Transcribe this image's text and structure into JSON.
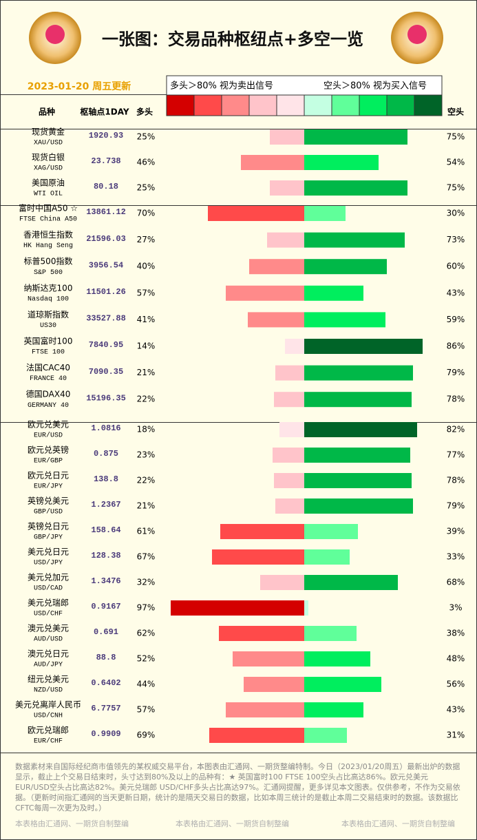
{
  "header": {
    "title": "一张图：交易品种枢纽点+多空一览",
    "date": "2023-01-20 周五更新",
    "legend_left": "多头＞80% 视为卖出信号",
    "legend_right": "空头＞80% 视为买入信号",
    "legend_colors": [
      "#d40000",
      "#ff4a4a",
      "#ff8a8a",
      "#ffc4ca",
      "#ffe4e8",
      "#c4ffe2",
      "#60ff9a",
      "#00ee5e",
      "#00b848",
      "#006428"
    ]
  },
  "columns": {
    "name": "品种",
    "pivot": "枢轴点1DAY",
    "long": "多头",
    "short": "空头"
  },
  "groups": [
    [
      {
        "name": "现货黄金",
        "code": "XAU/USD",
        "pivot": "1920.93",
        "long": {
          "value": 25,
          "label": "25%"
        },
        "short": {
          "value": 75,
          "label": "75%"
        }
      },
      {
        "name": "现货白银",
        "code": "XAG/USD",
        "pivot": "23.738",
        "long": {
          "value": 46,
          "label": "46%"
        },
        "short": {
          "value": 54,
          "label": "54%"
        }
      },
      {
        "name": "美国原油",
        "code": "WTI OIL",
        "pivot": "80.18",
        "long": {
          "value": 25,
          "label": "25%"
        },
        "short": {
          "value": 75,
          "label": "75%"
        }
      }
    ],
    [
      {
        "name": "富时中国A50 ☆",
        "code": "FTSE China A50",
        "pivot": "13861.12",
        "long": {
          "value": 70,
          "label": "70%"
        },
        "short": {
          "value": 30,
          "label": "30%"
        }
      },
      {
        "name": "香港恒生指数",
        "code": "HK Hang Seng",
        "pivot": "21596.03",
        "long": {
          "value": 27,
          "label": "27%"
        },
        "short": {
          "value": 73,
          "label": "73%"
        }
      },
      {
        "name": "标普500指数",
        "code": "S&P 500",
        "pivot": "3956.54",
        "long": {
          "value": 40,
          "label": "40%"
        },
        "short": {
          "value": 60,
          "label": "60%"
        }
      },
      {
        "name": "纳斯达克100",
        "code": "Nasdaq 100",
        "pivot": "11501.26",
        "long": {
          "value": 57,
          "label": "57%"
        },
        "short": {
          "value": 43,
          "label": "43%"
        }
      },
      {
        "name": "道琼斯指数",
        "code": "US30",
        "pivot": "33527.88",
        "long": {
          "value": 41,
          "label": "41%"
        },
        "short": {
          "value": 59,
          "label": "59%"
        }
      },
      {
        "name": "英国富时100",
        "code": "FTSE 100",
        "pivot": "7840.95",
        "long": {
          "value": 14,
          "label": "14%"
        },
        "short": {
          "value": 86,
          "label": "86%"
        }
      },
      {
        "name": "法国CAC40",
        "code": "FRANCE 40",
        "pivot": "7090.35",
        "long": {
          "value": 21,
          "label": "21%"
        },
        "short": {
          "value": 79,
          "label": "79%"
        }
      },
      {
        "name": "德国DAX40",
        "code": "GERMANY 40",
        "pivot": "15196.35",
        "long": {
          "value": 22,
          "label": "22%"
        },
        "short": {
          "value": 78,
          "label": "78%"
        }
      }
    ],
    [
      {
        "name": "欧元兑美元",
        "code": "EUR/USD",
        "pivot": "1.0816",
        "long": {
          "value": 18,
          "label": "18%"
        },
        "short": {
          "value": 82,
          "label": "82%"
        }
      },
      {
        "name": "欧元兑英镑",
        "code": "EUR/GBP",
        "pivot": "0.875",
        "long": {
          "value": 23,
          "label": "23%"
        },
        "short": {
          "value": 77,
          "label": "77%"
        }
      },
      {
        "name": "欧元兑日元",
        "code": "EUR/JPY",
        "pivot": "138.8",
        "long": {
          "value": 22,
          "label": "22%"
        },
        "short": {
          "value": 78,
          "label": "78%"
        }
      },
      {
        "name": "英镑兑美元",
        "code": "GBP/USD",
        "pivot": "1.2367",
        "long": {
          "value": 21,
          "label": "21%"
        },
        "short": {
          "value": 79,
          "label": "79%"
        }
      },
      {
        "name": "英镑兑日元",
        "code": "GBP/JPY",
        "pivot": "158.64",
        "long": {
          "value": 61,
          "label": "61%"
        },
        "short": {
          "value": 39,
          "label": "39%"
        }
      },
      {
        "name": "美元兑日元",
        "code": "USD/JPY",
        "pivot": "128.38",
        "long": {
          "value": 67,
          "label": "67%"
        },
        "short": {
          "value": 33,
          "label": "33%"
        }
      },
      {
        "name": "美元兑加元",
        "code": "USD/CAD",
        "pivot": "1.3476",
        "long": {
          "value": 32,
          "label": "32%"
        },
        "short": {
          "value": 68,
          "label": "68%"
        }
      },
      {
        "name": "美元兑瑞郎",
        "code": "USD/CHF",
        "pivot": "0.9167",
        "long": {
          "value": 97,
          "label": "97%"
        },
        "short": {
          "value": 3,
          "label": "3%"
        }
      },
      {
        "name": "澳元兑美元",
        "code": "AUD/USD",
        "pivot": "0.691",
        "long": {
          "value": 62,
          "label": "62%"
        },
        "short": {
          "value": 38,
          "label": "38%"
        }
      },
      {
        "name": "澳元兑日元",
        "code": "AUD/JPY",
        "pivot": "88.8",
        "long": {
          "value": 52,
          "label": "52%"
        },
        "short": {
          "value": 48,
          "label": "48%"
        }
      },
      {
        "name": "纽元兑美元",
        "code": "NZD/USD",
        "pivot": "0.6402",
        "long": {
          "value": 44,
          "label": "44%"
        },
        "short": {
          "value": 56,
          "label": "56%"
        }
      },
      {
        "name": "美元兑离岸人民币",
        "code": "USD/CNH",
        "pivot": "6.7757",
        "long": {
          "value": 57,
          "label": "57%"
        },
        "short": {
          "value": 43,
          "label": "43%"
        }
      },
      {
        "name": "欧元兑瑞郎",
        "code": "EUR/CHF",
        "pivot": "0.9909",
        "long": {
          "value": 69,
          "label": "69%"
        },
        "short": {
          "value": 31,
          "label": "31%"
        }
      }
    ]
  ],
  "footer": {
    "note": "数据素材来自国际经纪商市值领先的某权威交易平台，本图表由汇通网、一期货整编特制。今日（2023/01/20周五）最新出炉的数据显示，截止上个交易日结束时，头寸达到80%及以上的品种有：★ 英国富时100 FTSE 100空头占比高达86%。欧元兑美元 EUR/USD空头占比高达82%。美元兑瑞郎 USD/CHF多头占比高达97%。汇通网提醒，更多详见本文图表。仅供参考，不作为交易依据。（更新时间指汇通网的当天更新日期，统计的是隔天交易日的数据，比如本周三统计的是截止本周二交易结束时的数据。该数据比CFTC每周一次更为及时。）",
    "credits": [
      "本表格由汇通网、一期货自制整编",
      "本表格由汇通网、一期货自制整编",
      "本表格由汇通网、一期货自制整编"
    ]
  }
}
